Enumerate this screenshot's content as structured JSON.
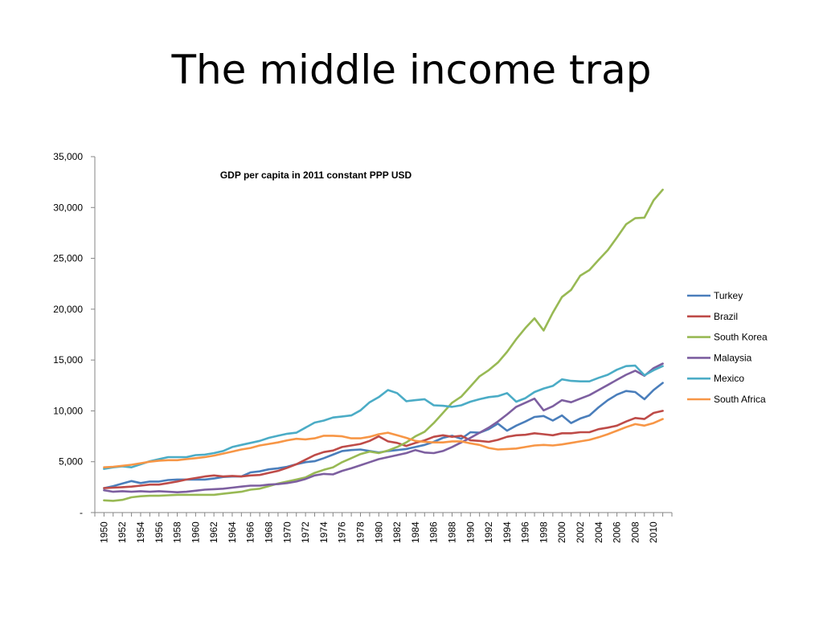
{
  "slide": {
    "title": "The middle income trap"
  },
  "chart_data": {
    "type": "line",
    "title": "GDP per capita  in 2011 constant PPP USD",
    "xlabel": "",
    "ylabel": "",
    "x": [
      1950,
      1951,
      1952,
      1953,
      1954,
      1955,
      1956,
      1957,
      1958,
      1959,
      1960,
      1961,
      1962,
      1963,
      1964,
      1965,
      1966,
      1967,
      1968,
      1969,
      1970,
      1971,
      1972,
      1973,
      1974,
      1975,
      1976,
      1977,
      1978,
      1979,
      1980,
      1981,
      1982,
      1983,
      1984,
      1985,
      1986,
      1987,
      1988,
      1989,
      1990,
      1991,
      1992,
      1993,
      1994,
      1995,
      1996,
      1997,
      1998,
      1999,
      2000,
      2001,
      2002,
      2003,
      2004,
      2005,
      2006,
      2007,
      2008,
      2009,
      2010,
      2011
    ],
    "xtick_labels": [
      "1950",
      "1952",
      "1954",
      "1956",
      "1958",
      "1960",
      "1962",
      "1964",
      "1966",
      "1968",
      "1970",
      "1972",
      "1974",
      "1976",
      "1978",
      "1980",
      "1982",
      "1984",
      "1986",
      "1988",
      "1990",
      "1992",
      "1994",
      "1996",
      "1998",
      "2000",
      "2002",
      "2004",
      "2006",
      "2008",
      "2010"
    ],
    "ytick_labels": [
      "-",
      "5,000",
      "10,000",
      "15,000",
      "20,000",
      "25,000",
      "30,000",
      "35,000"
    ],
    "ylim": [
      0,
      35000
    ],
    "grid": false,
    "legend_position": "right",
    "series": [
      {
        "name": "Turkey",
        "color": "#4a7ebb",
        "values": [
          2400,
          2600,
          2850,
          3100,
          2900,
          3050,
          3050,
          3200,
          3250,
          3250,
          3250,
          3250,
          3350,
          3500,
          3550,
          3550,
          3950,
          4050,
          4250,
          4350,
          4500,
          4750,
          4950,
          5050,
          5350,
          5700,
          6050,
          6150,
          6200,
          6050,
          5900,
          6050,
          6150,
          6250,
          6450,
          6650,
          6950,
          7350,
          7550,
          7250,
          7900,
          7850,
          8200,
          8750,
          8050,
          8550,
          8950,
          9400,
          9500,
          9050,
          9550,
          8800,
          9250,
          9550,
          10350,
          11050,
          11600,
          11950,
          11850,
          11150,
          12050,
          12750
        ]
      },
      {
        "name": "Brazil",
        "color": "#be4b48",
        "values": [
          2400,
          2450,
          2500,
          2550,
          2650,
          2750,
          2750,
          2900,
          3050,
          3250,
          3400,
          3550,
          3650,
          3550,
          3600,
          3550,
          3650,
          3700,
          3900,
          4100,
          4400,
          4750,
          5200,
          5650,
          5950,
          6100,
          6450,
          6600,
          6750,
          7050,
          7500,
          7000,
          6850,
          6550,
          6850,
          7100,
          7450,
          7600,
          7450,
          7550,
          7100,
          7050,
          6950,
          7150,
          7450,
          7600,
          7650,
          7800,
          7700,
          7600,
          7800,
          7800,
          7900,
          7900,
          8200,
          8350,
          8550,
          8950,
          9300,
          9200,
          9800,
          10000
        ]
      },
      {
        "name": "South Korea",
        "color": "#98b954",
        "values": [
          1200,
          1150,
          1250,
          1500,
          1600,
          1650,
          1650,
          1700,
          1750,
          1750,
          1750,
          1750,
          1750,
          1850,
          1950,
          2050,
          2250,
          2350,
          2600,
          2850,
          3050,
          3250,
          3450,
          3900,
          4200,
          4450,
          4950,
          5350,
          5750,
          6000,
          5850,
          6100,
          6450,
          6900,
          7500,
          7950,
          8800,
          9800,
          10800,
          11400,
          12400,
          13400,
          14000,
          14750,
          15800,
          17050,
          18150,
          19100,
          17900,
          19650,
          21200,
          21900,
          23300,
          23850,
          24850,
          25800,
          27050,
          28350,
          28950,
          29000,
          30700,
          31750
        ]
      },
      {
        "name": "Malaysia",
        "color": "#7d5fa0",
        "values": [
          2200,
          2050,
          2100,
          2050,
          2100,
          2050,
          2100,
          2050,
          2000,
          2050,
          2150,
          2250,
          2300,
          2350,
          2450,
          2550,
          2650,
          2650,
          2750,
          2800,
          2900,
          3050,
          3300,
          3650,
          3800,
          3750,
          4100,
          4350,
          4650,
          4950,
          5250,
          5450,
          5650,
          5850,
          6150,
          5900,
          5850,
          6050,
          6450,
          6900,
          7350,
          7850,
          8350,
          8950,
          9650,
          10400,
          10800,
          11200,
          10050,
          10450,
          11050,
          10850,
          11200,
          11550,
          12050,
          12550,
          13050,
          13550,
          13950,
          13450,
          14200,
          14650
        ]
      },
      {
        "name": "Mexico",
        "color": "#4bacc6",
        "values": [
          4300,
          4450,
          4550,
          4450,
          4750,
          5050,
          5250,
          5450,
          5450,
          5450,
          5650,
          5700,
          5850,
          6050,
          6450,
          6650,
          6850,
          7050,
          7350,
          7550,
          7750,
          7850,
          8350,
          8850,
          9050,
          9350,
          9450,
          9550,
          10050,
          10850,
          11350,
          12050,
          11750,
          10950,
          11050,
          11150,
          10550,
          10500,
          10400,
          10550,
          10900,
          11150,
          11350,
          11450,
          11750,
          10900,
          11250,
          11850,
          12200,
          12450,
          13100,
          12950,
          12900,
          12900,
          13250,
          13550,
          14050,
          14400,
          14450,
          13500,
          14000,
          14400
        ]
      },
      {
        "name": "South Africa",
        "color": "#f79646",
        "values": [
          4450,
          4500,
          4600,
          4700,
          4850,
          5000,
          5100,
          5150,
          5150,
          5250,
          5350,
          5450,
          5600,
          5800,
          6000,
          6200,
          6350,
          6600,
          6750,
          6900,
          7100,
          7250,
          7200,
          7300,
          7550,
          7550,
          7500,
          7300,
          7300,
          7450,
          7700,
          7850,
          7600,
          7350,
          7050,
          6950,
          6900,
          6900,
          7000,
          7000,
          6800,
          6650,
          6350,
          6200,
          6250,
          6300,
          6450,
          6600,
          6650,
          6600,
          6700,
          6850,
          7000,
          7150,
          7400,
          7700,
          8050,
          8400,
          8700,
          8550,
          8800,
          9200
        ]
      }
    ]
  }
}
